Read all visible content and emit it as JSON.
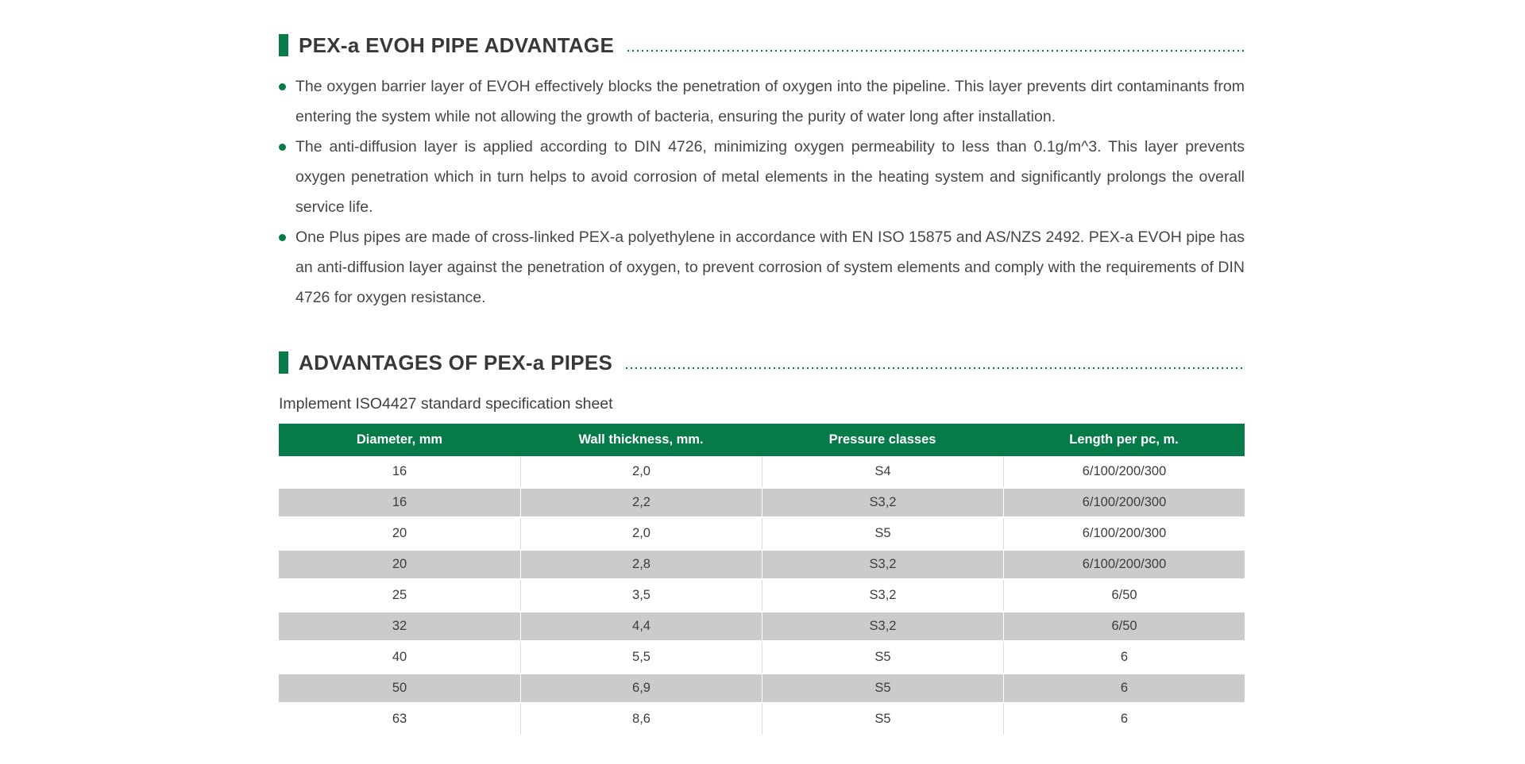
{
  "theme": {
    "accent_green": "#077a4a",
    "heading_text_color": "#383838",
    "body_text_color": "#474747",
    "table_header_bg": "#077a4a",
    "table_header_text_color": "#ffffff",
    "table_alt_row_bg": "#cbcbcb"
  },
  "sections": [
    {
      "heading": "PEX-a EVOH PIPE ADVANTAGE",
      "bullets": [
        "The oxygen barrier layer of EVOH effectively blocks the penetration of oxygen into the pipeline. This layer prevents dirt contaminants from entering the system while not allowing the growth of bacteria, ensuring the purity of water long after installation.",
        "The anti-diffusion layer is applied according to DIN 4726, minimizing oxygen permeability to less than 0.1g/m^3. This layer prevents oxygen penetration which in turn helps to avoid corrosion of metal elements in the heating system and significantly prolongs the overall service life.",
        "One Plus pipes are made of cross-linked PEX-a polyethylene in accordance with EN ISO 15875 and AS/NZS 2492. PEX-a EVOH pipe has an anti-diffusion layer against the penetration of oxygen, to prevent corrosion of system elements and comply with the requirements of DIN 4726 for oxygen resistance."
      ]
    },
    {
      "heading": "ADVANTAGES OF PEX-a PIPES",
      "intro": "Implement ISO4427 standard specification sheet",
      "table": {
        "columns": [
          "Diameter, mm",
          "Wall thickness, mm.",
          "Pressure classes",
          "Length per pc, m."
        ],
        "rows": [
          [
            "16",
            "2,0",
            "S4",
            "6/100/200/300"
          ],
          [
            "16",
            "2,2",
            "S3,2",
            "6/100/200/300"
          ],
          [
            "20",
            "2,0",
            "S5",
            "6/100/200/300"
          ],
          [
            "20",
            "2,8",
            "S3,2",
            "6/100/200/300"
          ],
          [
            "25",
            "3,5",
            "S3,2",
            "6/50"
          ],
          [
            "32",
            "4,4",
            "S3,2",
            "6/50"
          ],
          [
            "40",
            "5,5",
            "S5",
            "6"
          ],
          [
            "50",
            "6,9",
            "S5",
            "6"
          ],
          [
            "63",
            "8,6",
            "S5",
            "6"
          ]
        ]
      }
    }
  ]
}
